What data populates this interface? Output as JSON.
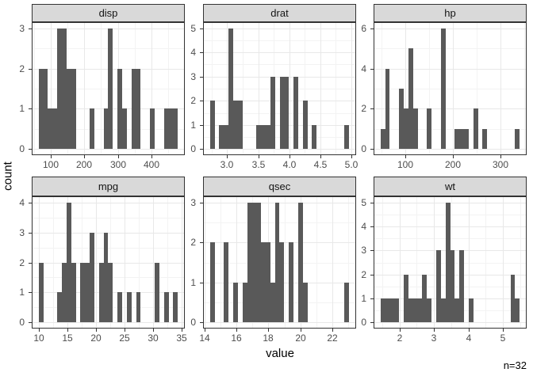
{
  "chart_data": {
    "type": "bar",
    "subtype": "faceted-histograms",
    "title": "",
    "xlabel": "value",
    "ylabel": "count",
    "annotation": "n=32",
    "sample_size": 32,
    "legend": "none",
    "grid": "on",
    "bar_color": "#595959",
    "strip_fill": "#d9d9d9",
    "panel_border_color": "#333333",
    "grid_major_color": "#e8e8e8",
    "grid_minor_color": "#f3f3f3",
    "tick_label_color": "#4d4d4d",
    "facets": [
      {
        "title": "disp",
        "bin_start": 64.1903,
        "binwidth": 13.8259,
        "counts": [
          2,
          2,
          1,
          1,
          3,
          3,
          2,
          2,
          0,
          0,
          0,
          1,
          0,
          0,
          1,
          3,
          0,
          2,
          1,
          0,
          2,
          2,
          0,
          0,
          1,
          0,
          0,
          1,
          1,
          1
        ],
        "x_tick_values": [
          100,
          200,
          300,
          400
        ],
        "x_tick_labels": [
          "100",
          "200",
          "300",
          "400"
        ],
        "x_minor_ticks": [
          50,
          150,
          250,
          350,
          450
        ],
        "y_tick_values": [
          0,
          1,
          2,
          3
        ],
        "y_tick_labels": [
          "0",
          "1",
          "2",
          "3"
        ],
        "y_minor_ticks": [
          0.5,
          1.5,
          2.5
        ],
        "y_max": 3
      },
      {
        "title": "drat",
        "bin_start": 2.722586,
        "binwidth": 0.0748276,
        "counts": [
          2,
          0,
          1,
          1,
          5,
          2,
          2,
          0,
          0,
          0,
          1,
          1,
          1,
          3,
          0,
          3,
          3,
          0,
          3,
          0,
          2,
          0,
          1,
          0,
          0,
          0,
          0,
          0,
          0,
          1
        ],
        "x_tick_values": [
          3.0,
          3.5,
          4.0,
          4.5,
          5.0
        ],
        "x_tick_labels": [
          "3.0",
          "3.5",
          "4.0",
          "4.5",
          "5.0"
        ],
        "x_minor_ticks": [
          2.75,
          3.25,
          3.75,
          4.25,
          4.75
        ],
        "y_tick_values": [
          0,
          1,
          2,
          3,
          4,
          5
        ],
        "y_tick_labels": [
          "0",
          "1",
          "2",
          "3",
          "4",
          "5"
        ],
        "y_minor_ticks": [
          0.5,
          1.5,
          2.5,
          3.5,
          4.5
        ],
        "y_max": 5
      },
      {
        "title": "hp",
        "bin_start": 47.1207,
        "binwidth": 9.75862,
        "counts": [
          1,
          4,
          0,
          0,
          3,
          2,
          5,
          2,
          0,
          0,
          2,
          0,
          0,
          6,
          0,
          0,
          1,
          1,
          1,
          0,
          2,
          0,
          1,
          0,
          0,
          0,
          0,
          0,
          0,
          1
        ],
        "x_tick_values": [
          100,
          200,
          300
        ],
        "x_tick_labels": [
          "100",
          "200",
          "300"
        ],
        "x_minor_ticks": [
          50,
          150,
          250,
          350
        ],
        "y_tick_values": [
          0,
          2,
          4,
          6
        ],
        "y_tick_labels": [
          "0",
          "2",
          "4",
          "6"
        ],
        "y_minor_ticks": [
          1,
          3,
          5
        ],
        "y_max": 6
      },
      {
        "title": "mpg",
        "bin_start": 9.994828,
        "binwidth": 0.8103448,
        "counts": [
          2,
          0,
          0,
          0,
          1,
          2,
          4,
          2,
          0,
          2,
          2,
          3,
          0,
          2,
          3,
          2,
          0,
          1,
          0,
          1,
          0,
          1,
          0,
          0,
          0,
          2,
          0,
          1,
          0,
          1
        ],
        "x_tick_values": [
          10,
          15,
          20,
          25,
          30,
          35
        ],
        "x_tick_labels": [
          "10",
          "15",
          "20",
          "25",
          "30",
          "35"
        ],
        "x_minor_ticks": [
          12.5,
          17.5,
          22.5,
          27.5,
          32.5
        ],
        "y_tick_values": [
          0,
          1,
          2,
          3,
          4
        ],
        "y_tick_labels": [
          "0",
          "1",
          "2",
          "3",
          "4"
        ],
        "y_minor_ticks": [
          0.5,
          1.5,
          2.5,
          3.5
        ],
        "y_max": 4
      },
      {
        "title": "qsec",
        "bin_start": 14.355172,
        "binwidth": 0.2896552,
        "counts": [
          2,
          0,
          0,
          2,
          0,
          1,
          0,
          1,
          3,
          3,
          3,
          2,
          2,
          1,
          3,
          2,
          0,
          2,
          0,
          3,
          1,
          0,
          0,
          0,
          0,
          0,
          0,
          0,
          0,
          1
        ],
        "x_tick_values": [
          14,
          16,
          18,
          20,
          22
        ],
        "x_tick_labels": [
          "14",
          "16",
          "18",
          "20",
          "22"
        ],
        "x_minor_ticks": [
          15,
          17,
          19,
          21,
          23
        ],
        "y_tick_values": [
          0,
          1,
          2,
          3
        ],
        "y_tick_labels": [
          "0",
          "1",
          "2",
          "3"
        ],
        "y_minor_ticks": [
          0.5,
          1.5,
          2.5
        ],
        "y_max": 3
      },
      {
        "title": "wt",
        "bin_start": 1.445569,
        "binwidth": 0.1348621,
        "counts": [
          1,
          1,
          1,
          1,
          0,
          2,
          1,
          1,
          1,
          2,
          1,
          0,
          3,
          1,
          5,
          3,
          1,
          3,
          0,
          1,
          0,
          0,
          0,
          0,
          0,
          0,
          0,
          0,
          2,
          1
        ],
        "x_tick_values": [
          2,
          3,
          4,
          5
        ],
        "x_tick_labels": [
          "2",
          "3",
          "4",
          "5"
        ],
        "x_minor_ticks": [
          1.5,
          2.5,
          3.5,
          4.5,
          5.5
        ],
        "y_tick_values": [
          0,
          1,
          2,
          3,
          4,
          5
        ],
        "y_tick_labels": [
          "0",
          "1",
          "2",
          "3",
          "4",
          "5"
        ],
        "y_minor_ticks": [
          0.5,
          1.5,
          2.5,
          3.5,
          4.5
        ],
        "y_max": 5
      }
    ]
  }
}
